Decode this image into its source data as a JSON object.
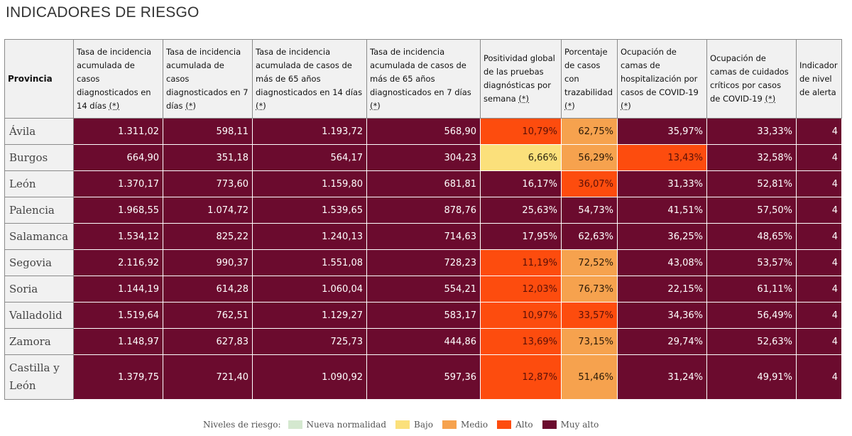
{
  "title": "INDICADORES DE RIESGO",
  "table": {
    "headers": [
      {
        "text": "Provincia",
        "ast": ""
      },
      {
        "text": "Tasa de incidencia acumulada de casos diagnosticados en 14 días ",
        "ast": "(*)"
      },
      {
        "text": "Tasa de incidencia acumulada de casos diagnosticados en 7 días ",
        "ast": "(*)"
      },
      {
        "text": "Tasa de incidencia acumulada de casos de más de 65 años diagnosticados en 14 días ",
        "ast": "(*)"
      },
      {
        "text": "Tasa de incidencia acumulada de casos de más de 65 años diagnosticados en 7 días ",
        "ast": "(*)"
      },
      {
        "text": "Positividad global de las pruebas diagnósticas por semana ",
        "ast": "(*)"
      },
      {
        "text": "Porcentaje de casos con trazabilidad ",
        "ast": "(*)"
      },
      {
        "text": "Ocupación de camas de hospitalización por casos de COVID-19 ",
        "ast": "(*)"
      },
      {
        "text": "Ocupación de camas de cuidados críticos por casos de COVID-19 ",
        "ast": "(*)"
      },
      {
        "text": "Indicador de nivel de alerta",
        "ast": ""
      }
    ],
    "rows": [
      {
        "province": "Ávila",
        "cells": [
          {
            "v": "1.311,02",
            "lvl": "muyalto"
          },
          {
            "v": "598,11",
            "lvl": "muyalto"
          },
          {
            "v": "1.193,72",
            "lvl": "muyalto"
          },
          {
            "v": "568,90",
            "lvl": "muyalto"
          },
          {
            "v": "10,79%",
            "lvl": "alto"
          },
          {
            "v": "62,75%",
            "lvl": "medio"
          },
          {
            "v": "35,97%",
            "lvl": "muyalto"
          },
          {
            "v": "33,33%",
            "lvl": "muyalto"
          },
          {
            "v": "4",
            "lvl": "muyalto"
          }
        ]
      },
      {
        "province": "Burgos",
        "cells": [
          {
            "v": "664,90",
            "lvl": "muyalto"
          },
          {
            "v": "351,18",
            "lvl": "muyalto"
          },
          {
            "v": "564,17",
            "lvl": "muyalto"
          },
          {
            "v": "304,23",
            "lvl": "muyalto"
          },
          {
            "v": "6,66%",
            "lvl": "bajo"
          },
          {
            "v": "56,29%",
            "lvl": "medio"
          },
          {
            "v": "13,43%",
            "lvl": "alto"
          },
          {
            "v": "32,58%",
            "lvl": "muyalto"
          },
          {
            "v": "4",
            "lvl": "muyalto"
          }
        ]
      },
      {
        "province": "León",
        "cells": [
          {
            "v": "1.370,17",
            "lvl": "muyalto"
          },
          {
            "v": "773,60",
            "lvl": "muyalto"
          },
          {
            "v": "1.159,80",
            "lvl": "muyalto"
          },
          {
            "v": "681,81",
            "lvl": "muyalto"
          },
          {
            "v": "16,17%",
            "lvl": "muyalto"
          },
          {
            "v": "36,07%",
            "lvl": "alto"
          },
          {
            "v": "31,33%",
            "lvl": "muyalto"
          },
          {
            "v": "52,81%",
            "lvl": "muyalto"
          },
          {
            "v": "4",
            "lvl": "muyalto"
          }
        ]
      },
      {
        "province": "Palencia",
        "cells": [
          {
            "v": "1.968,55",
            "lvl": "muyalto"
          },
          {
            "v": "1.074,72",
            "lvl": "muyalto"
          },
          {
            "v": "1.539,65",
            "lvl": "muyalto"
          },
          {
            "v": "878,76",
            "lvl": "muyalto"
          },
          {
            "v": "25,63%",
            "lvl": "muyalto"
          },
          {
            "v": "54,73%",
            "lvl": "muyalto"
          },
          {
            "v": "41,51%",
            "lvl": "muyalto"
          },
          {
            "v": "57,50%",
            "lvl": "muyalto"
          },
          {
            "v": "4",
            "lvl": "muyalto"
          }
        ]
      },
      {
        "province": "Salamanca",
        "cells": [
          {
            "v": "1.534,12",
            "lvl": "muyalto"
          },
          {
            "v": "825,22",
            "lvl": "muyalto"
          },
          {
            "v": "1.240,13",
            "lvl": "muyalto"
          },
          {
            "v": "714,63",
            "lvl": "muyalto"
          },
          {
            "v": "17,95%",
            "lvl": "muyalto"
          },
          {
            "v": "62,63%",
            "lvl": "muyalto"
          },
          {
            "v": "36,25%",
            "lvl": "muyalto"
          },
          {
            "v": "48,65%",
            "lvl": "muyalto"
          },
          {
            "v": "4",
            "lvl": "muyalto"
          }
        ]
      },
      {
        "province": "Segovia",
        "cells": [
          {
            "v": "2.116,92",
            "lvl": "muyalto"
          },
          {
            "v": "990,37",
            "lvl": "muyalto"
          },
          {
            "v": "1.551,08",
            "lvl": "muyalto"
          },
          {
            "v": "728,23",
            "lvl": "muyalto"
          },
          {
            "v": "11,19%",
            "lvl": "alto"
          },
          {
            "v": "72,52%",
            "lvl": "medio"
          },
          {
            "v": "43,08%",
            "lvl": "muyalto"
          },
          {
            "v": "53,57%",
            "lvl": "muyalto"
          },
          {
            "v": "4",
            "lvl": "muyalto"
          }
        ]
      },
      {
        "province": "Soria",
        "cells": [
          {
            "v": "1.144,19",
            "lvl": "muyalto"
          },
          {
            "v": "614,28",
            "lvl": "muyalto"
          },
          {
            "v": "1.060,04",
            "lvl": "muyalto"
          },
          {
            "v": "554,21",
            "lvl": "muyalto"
          },
          {
            "v": "12,03%",
            "lvl": "alto"
          },
          {
            "v": "76,73%",
            "lvl": "medio"
          },
          {
            "v": "22,15%",
            "lvl": "muyalto"
          },
          {
            "v": "61,11%",
            "lvl": "muyalto"
          },
          {
            "v": "4",
            "lvl": "muyalto"
          }
        ]
      },
      {
        "province": "Valladolid",
        "cells": [
          {
            "v": "1.519,64",
            "lvl": "muyalto"
          },
          {
            "v": "762,51",
            "lvl": "muyalto"
          },
          {
            "v": "1.129,27",
            "lvl": "muyalto"
          },
          {
            "v": "583,17",
            "lvl": "muyalto"
          },
          {
            "v": "10,97%",
            "lvl": "alto"
          },
          {
            "v": "33,57%",
            "lvl": "alto"
          },
          {
            "v": "34,36%",
            "lvl": "muyalto"
          },
          {
            "v": "56,49%",
            "lvl": "muyalto"
          },
          {
            "v": "4",
            "lvl": "muyalto"
          }
        ]
      },
      {
        "province": "Zamora",
        "cells": [
          {
            "v": "1.148,97",
            "lvl": "muyalto"
          },
          {
            "v": "627,83",
            "lvl": "muyalto"
          },
          {
            "v": "725,73",
            "lvl": "muyalto"
          },
          {
            "v": "444,86",
            "lvl": "muyalto"
          },
          {
            "v": "13,69%",
            "lvl": "alto"
          },
          {
            "v": "73,15%",
            "lvl": "medio"
          },
          {
            "v": "29,74%",
            "lvl": "muyalto"
          },
          {
            "v": "52,63%",
            "lvl": "muyalto"
          },
          {
            "v": "4",
            "lvl": "muyalto"
          }
        ]
      },
      {
        "province": "Castilla y León",
        "cells": [
          {
            "v": "1.379,75",
            "lvl": "muyalto"
          },
          {
            "v": "721,40",
            "lvl": "muyalto"
          },
          {
            "v": "1.090,92",
            "lvl": "muyalto"
          },
          {
            "v": "597,36",
            "lvl": "muyalto"
          },
          {
            "v": "12,87%",
            "lvl": "alto"
          },
          {
            "v": "51,46%",
            "lvl": "medio"
          },
          {
            "v": "31,24%",
            "lvl": "muyalto"
          },
          {
            "v": "49,91%",
            "lvl": "muyalto"
          },
          {
            "v": "4",
            "lvl": "muyalto"
          }
        ]
      }
    ]
  },
  "legend": {
    "label": "Niveles de riesgo:",
    "items": [
      {
        "name": "Nueva normalidad",
        "color": "#d4e8cf"
      },
      {
        "name": "Bajo",
        "color": "#fbe07b"
      },
      {
        "name": "Medio",
        "color": "#f6a24e"
      },
      {
        "name": "Alto",
        "color": "#fd4c0e"
      },
      {
        "name": "Muy alto",
        "color": "#6b0b2e"
      }
    ]
  }
}
